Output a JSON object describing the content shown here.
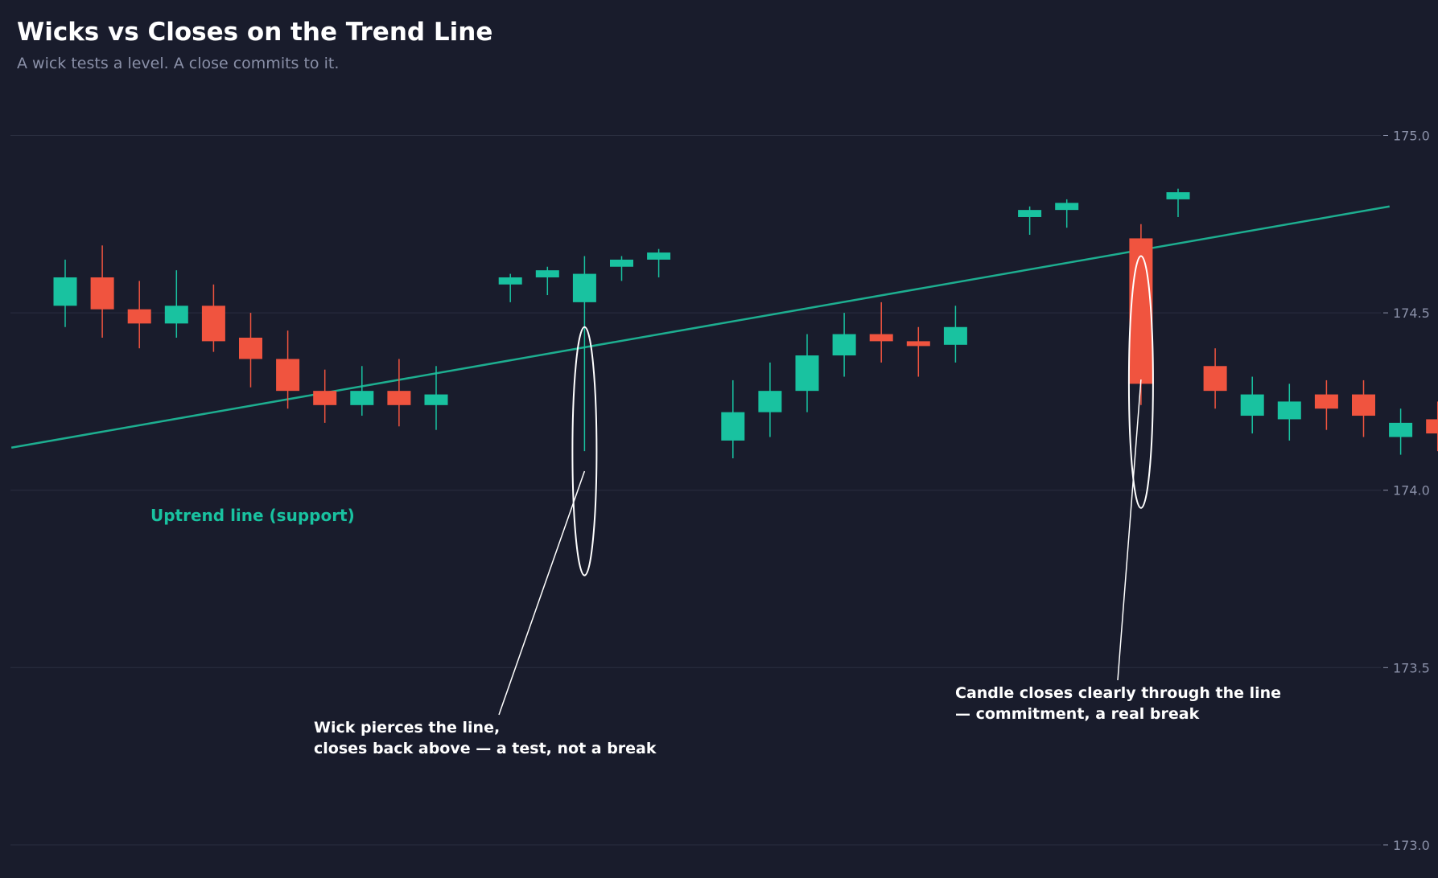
{
  "header": {
    "title": "Wicks vs Closes on the Trend Line",
    "subtitle": "A wick tests a level. A close commits to it."
  },
  "colors": {
    "background": "#191c2c",
    "bullish": "#19c2a0",
    "bearish": "#f0543f",
    "trend_line": "#1dae90",
    "grid": "#2a2e40",
    "tick_text": "#8a90a8",
    "annotation": "#ffffff"
  },
  "chart_data": {
    "type": "candlestick",
    "title": "Wicks vs Closes on the Trend Line",
    "subtitle": "A wick tests a level. A close commits to it.",
    "xlabel": "",
    "ylabel": "",
    "ylim": [
      172.95,
      175.15
    ],
    "yticks": [
      175.0,
      174.5,
      174.0,
      173.5,
      173.0
    ],
    "ytick_labels": [
      "175.0",
      "174.5",
      "174.0",
      "173.5",
      "173.0"
    ],
    "grid": true,
    "axis_side": "right",
    "candles": [
      {
        "i": 1,
        "open": 174.52,
        "high": 174.65,
        "low": 174.46,
        "close": 174.6
      },
      {
        "i": 2,
        "open": 174.6,
        "high": 174.69,
        "low": 174.43,
        "close": 174.51
      },
      {
        "i": 3,
        "open": 174.51,
        "high": 174.59,
        "low": 174.4,
        "close": 174.47
      },
      {
        "i": 4,
        "open": 174.47,
        "high": 174.62,
        "low": 174.43,
        "close": 174.52
      },
      {
        "i": 5,
        "open": 174.52,
        "high": 174.58,
        "low": 174.39,
        "close": 174.42
      },
      {
        "i": 6,
        "open": 174.43,
        "high": 174.5,
        "low": 174.29,
        "close": 174.37
      },
      {
        "i": 7,
        "open": 174.37,
        "high": 174.45,
        "low": 174.23,
        "close": 174.28
      },
      {
        "i": 8,
        "open": 174.28,
        "high": 174.34,
        "low": 174.19,
        "close": 174.24
      },
      {
        "i": 9,
        "open": 174.24,
        "high": 174.35,
        "low": 174.21,
        "close": 174.28
      },
      {
        "i": 10,
        "open": 174.28,
        "high": 174.37,
        "low": 174.18,
        "close": 174.24
      },
      {
        "i": 11,
        "open": 174.24,
        "high": 174.35,
        "low": 174.17,
        "close": 174.27
      },
      {
        "i": 13,
        "open": 174.58,
        "high": 174.61,
        "low": 174.53,
        "close": 174.6
      },
      {
        "i": 14,
        "open": 174.6,
        "high": 174.63,
        "low": 174.55,
        "close": 174.62
      },
      {
        "i": 15,
        "open": 174.53,
        "high": 174.66,
        "low": 174.11,
        "close": 174.61
      },
      {
        "i": 16,
        "open": 174.63,
        "high": 174.66,
        "low": 174.59,
        "close": 174.65
      },
      {
        "i": 17,
        "open": 174.65,
        "high": 174.68,
        "low": 174.6,
        "close": 174.67
      },
      {
        "i": 19,
        "open": 174.14,
        "high": 174.31,
        "low": 174.09,
        "close": 174.22
      },
      {
        "i": 20,
        "open": 174.22,
        "high": 174.36,
        "low": 174.15,
        "close": 174.28
      },
      {
        "i": 21,
        "open": 174.28,
        "high": 174.44,
        "low": 174.22,
        "close": 174.38
      },
      {
        "i": 22,
        "open": 174.38,
        "high": 174.5,
        "low": 174.32,
        "close": 174.44
      },
      {
        "i": 23,
        "open": 174.44,
        "high": 174.53,
        "low": 174.36,
        "close": 174.42
      },
      {
        "i": 24,
        "open": 174.42,
        "high": 174.46,
        "low": 174.32,
        "close": 174.41
      },
      {
        "i": 25,
        "open": 174.41,
        "high": 174.52,
        "low": 174.36,
        "close": 174.46
      },
      {
        "i": 27,
        "open": 174.77,
        "high": 174.8,
        "low": 174.72,
        "close": 174.79
      },
      {
        "i": 28,
        "open": 174.79,
        "high": 174.82,
        "low": 174.74,
        "close": 174.81
      },
      {
        "i": 30,
        "open": 174.71,
        "high": 174.75,
        "low": 174.24,
        "close": 174.3
      },
      {
        "i": 31,
        "open": 174.82,
        "high": 174.85,
        "low": 174.77,
        "close": 174.84
      },
      {
        "i": 32,
        "open": 174.35,
        "high": 174.4,
        "low": 174.23,
        "close": 174.28
      },
      {
        "i": 33,
        "open": 174.21,
        "high": 174.32,
        "low": 174.16,
        "close": 174.27
      },
      {
        "i": 34,
        "open": 174.2,
        "high": 174.3,
        "low": 174.14,
        "close": 174.25
      },
      {
        "i": 35,
        "open": 174.27,
        "high": 174.31,
        "low": 174.17,
        "close": 174.23
      },
      {
        "i": 36,
        "open": 174.27,
        "high": 174.31,
        "low": 174.15,
        "close": 174.21
      },
      {
        "i": 37,
        "open": 174.15,
        "high": 174.23,
        "low": 174.1,
        "close": 174.19
      },
      {
        "i": 38,
        "open": 174.2,
        "high": 174.25,
        "low": 174.11,
        "close": 174.16
      }
    ],
    "trend_line": {
      "label": "Uptrend line (support)",
      "start": {
        "x": -0.45,
        "y": 174.12
      },
      "end": {
        "x": 36.7,
        "y": 174.8
      }
    },
    "annotations": [
      {
        "text_lines": [
          "Wick pierces the line,",
          "closes back above — a test, not a break"
        ],
        "candle": 15,
        "circle": {
          "y_top": 174.46,
          "y_bottom": 173.76
        }
      },
      {
        "text_lines": [
          "Candle closes clearly through the line",
          "— commitment, a real break"
        ],
        "candle": 30,
        "circle": {
          "y_top": 174.66,
          "y_bottom": 173.95
        }
      }
    ]
  }
}
